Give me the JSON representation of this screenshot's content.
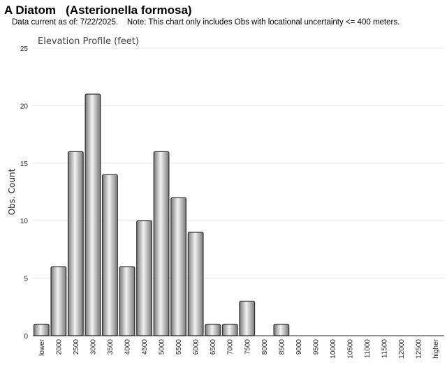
{
  "header": {
    "title": "A Diatom   (Asterionella formosa)",
    "subtitle": "Data current as of: 7/22/2025.    Note: This chart only includes Obs with locational uncertainty <= 400 meters."
  },
  "chart_data": {
    "type": "bar",
    "title": "Elevation Profile (feet)",
    "xlabel": "",
    "ylabel": "Obs. Count",
    "ylim": [
      0,
      25
    ],
    "yticks": [
      0,
      5,
      10,
      15,
      20,
      25
    ],
    "grid": true,
    "categories": [
      "lower",
      "2000",
      "2500",
      "3000",
      "3500",
      "4000",
      "4500",
      "5000",
      "5500",
      "6000",
      "6500",
      "7000",
      "7500",
      "8000",
      "8500",
      "9000",
      "9500",
      "10000",
      "10500",
      "11000",
      "11500",
      "12000",
      "12500",
      "higher"
    ],
    "values": [
      1,
      6,
      16,
      21,
      14,
      6,
      10,
      16,
      12,
      9,
      1,
      1,
      3,
      0,
      1,
      0,
      0,
      0,
      0,
      0,
      0,
      0,
      0,
      0
    ]
  },
  "colors": {
    "bar_stroke": "#333333",
    "bar_dark": "#7a7a7a",
    "bar_light": "#f2f2f2",
    "grid": "#e6e6e6"
  }
}
